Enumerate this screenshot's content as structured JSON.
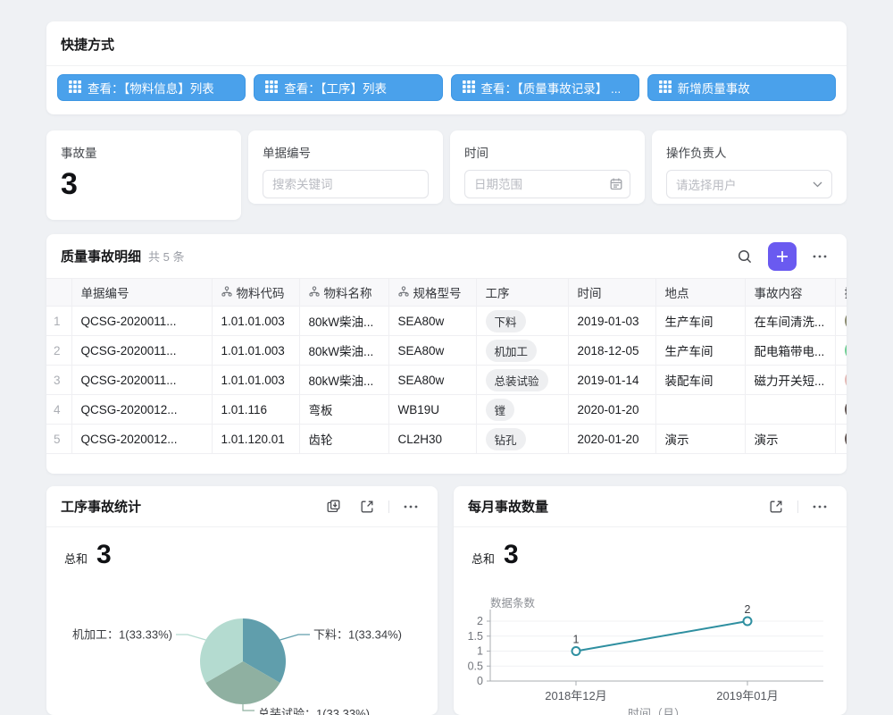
{
  "shortcuts": {
    "title": "快捷方式",
    "buttons": [
      {
        "label": "查看：【物料信息】列表",
        "icon": "grid-icon"
      },
      {
        "label": "查看：【工序】列表",
        "icon": "grid-icon"
      },
      {
        "label": "查看：【质量事故记录】 ...",
        "icon": "grid-icon"
      },
      {
        "label": "新增质量事故",
        "icon": "grid-icon"
      }
    ]
  },
  "filters": {
    "incident": {
      "label": "事故量",
      "value": "3"
    },
    "doc": {
      "label": "单据编号",
      "placeholder": "搜索关键词"
    },
    "time": {
      "label": "时间",
      "placeholder": "日期范围",
      "icon": "calendar-icon"
    },
    "operator": {
      "label": "操作负责人",
      "placeholder": "请选择用户",
      "icon": "chevron-down-icon"
    }
  },
  "table": {
    "title": "质量事故明细",
    "count": "共 5 条",
    "actions": [
      "search-icon",
      "add-button",
      "more-icon"
    ],
    "columns": [
      {
        "label": "",
        "relation": false
      },
      {
        "label": "单据编号",
        "relation": false
      },
      {
        "label": "物料代码",
        "relation": true
      },
      {
        "label": "物料名称",
        "relation": true
      },
      {
        "label": "规格型号",
        "relation": true
      },
      {
        "label": "工序",
        "relation": false
      },
      {
        "label": "时间",
        "relation": false
      },
      {
        "label": "地点",
        "relation": false
      },
      {
        "label": "事故内容",
        "relation": false
      },
      {
        "label": "操作负责人",
        "relation": false
      }
    ],
    "rows": [
      {
        "no": "1",
        "doc_no": "QCSG-2020011...",
        "material_code": "1.01.01.003",
        "material_name": "80kW柴油...",
        "spec": "SEA80w",
        "process": "下料",
        "time": "2019-01-03",
        "place": "生产车间",
        "content": "在车间清洗...",
        "avatar_color": "#8A8A6F"
      },
      {
        "no": "2",
        "doc_no": "QCSG-2020011...",
        "material_code": "1.01.01.003",
        "material_name": "80kW柴油...",
        "spec": "SEA80w",
        "process": "机加工",
        "time": "2018-12-05",
        "place": "生产车间",
        "content": "配电箱带电...",
        "avatar_color": "#6FCE93"
      },
      {
        "no": "3",
        "doc_no": "QCSG-2020011...",
        "material_code": "1.01.01.003",
        "material_name": "80kW柴油...",
        "spec": "SEA80w",
        "process": "总装试验",
        "time": "2019-01-14",
        "place": "装配车间",
        "content": "磁力开关短...",
        "avatar_color": "#E3B8B4"
      },
      {
        "no": "4",
        "doc_no": "QCSG-2020012...",
        "material_code": "1.01.116",
        "material_name": "弯板",
        "spec": "WB19U",
        "process": "镗",
        "time": "2020-01-20",
        "place": "",
        "content": "",
        "avatar_color": "#5F5350"
      },
      {
        "no": "5",
        "doc_no": "QCSG-2020012...",
        "material_code": "1.01.120.01",
        "material_name": "齿轮",
        "spec": "CL2H30",
        "process": "钻孔",
        "time": "2020-01-20",
        "place": "演示",
        "content": "演示",
        "avatar_color": "#5F5350"
      }
    ]
  },
  "chart_data": [
    {
      "type": "pie",
      "title": "工序事故统计",
      "actions": [
        "download-icon",
        "expand-icon",
        "more-icon"
      ],
      "total_label": "总和",
      "total": 3,
      "slices": [
        {
          "label": "下料",
          "value": 1,
          "percent": "33.34%",
          "color": "#609EAC"
        },
        {
          "label": "总装试验",
          "value": 1,
          "percent": "33.33%",
          "color": "#8FB0A1"
        },
        {
          "label": "机加工",
          "value": 1,
          "percent": "33.33%",
          "color": "#B4DBD0"
        }
      ],
      "legend_position": "outside-leader-lines"
    },
    {
      "type": "line",
      "title": "每月事故数量",
      "actions": [
        "expand-icon",
        "more-icon"
      ],
      "total_label": "总和",
      "total": 3,
      "ylabel": "数据条数",
      "xlabel": "时间（月）",
      "x": [
        "2018年12月",
        "2019年01月"
      ],
      "values": [
        1,
        2
      ],
      "point_labels": [
        "1",
        "2"
      ],
      "yticks": [
        0,
        0.5,
        1,
        1.5,
        2
      ],
      "ylim": [
        0,
        2
      ],
      "grid": true,
      "color": "#2E8FA0"
    }
  ],
  "colors": {
    "accent_blue": "#4AA1EB",
    "accent_purple": "#6A5AF0",
    "page_background": "#EFF1F4"
  }
}
